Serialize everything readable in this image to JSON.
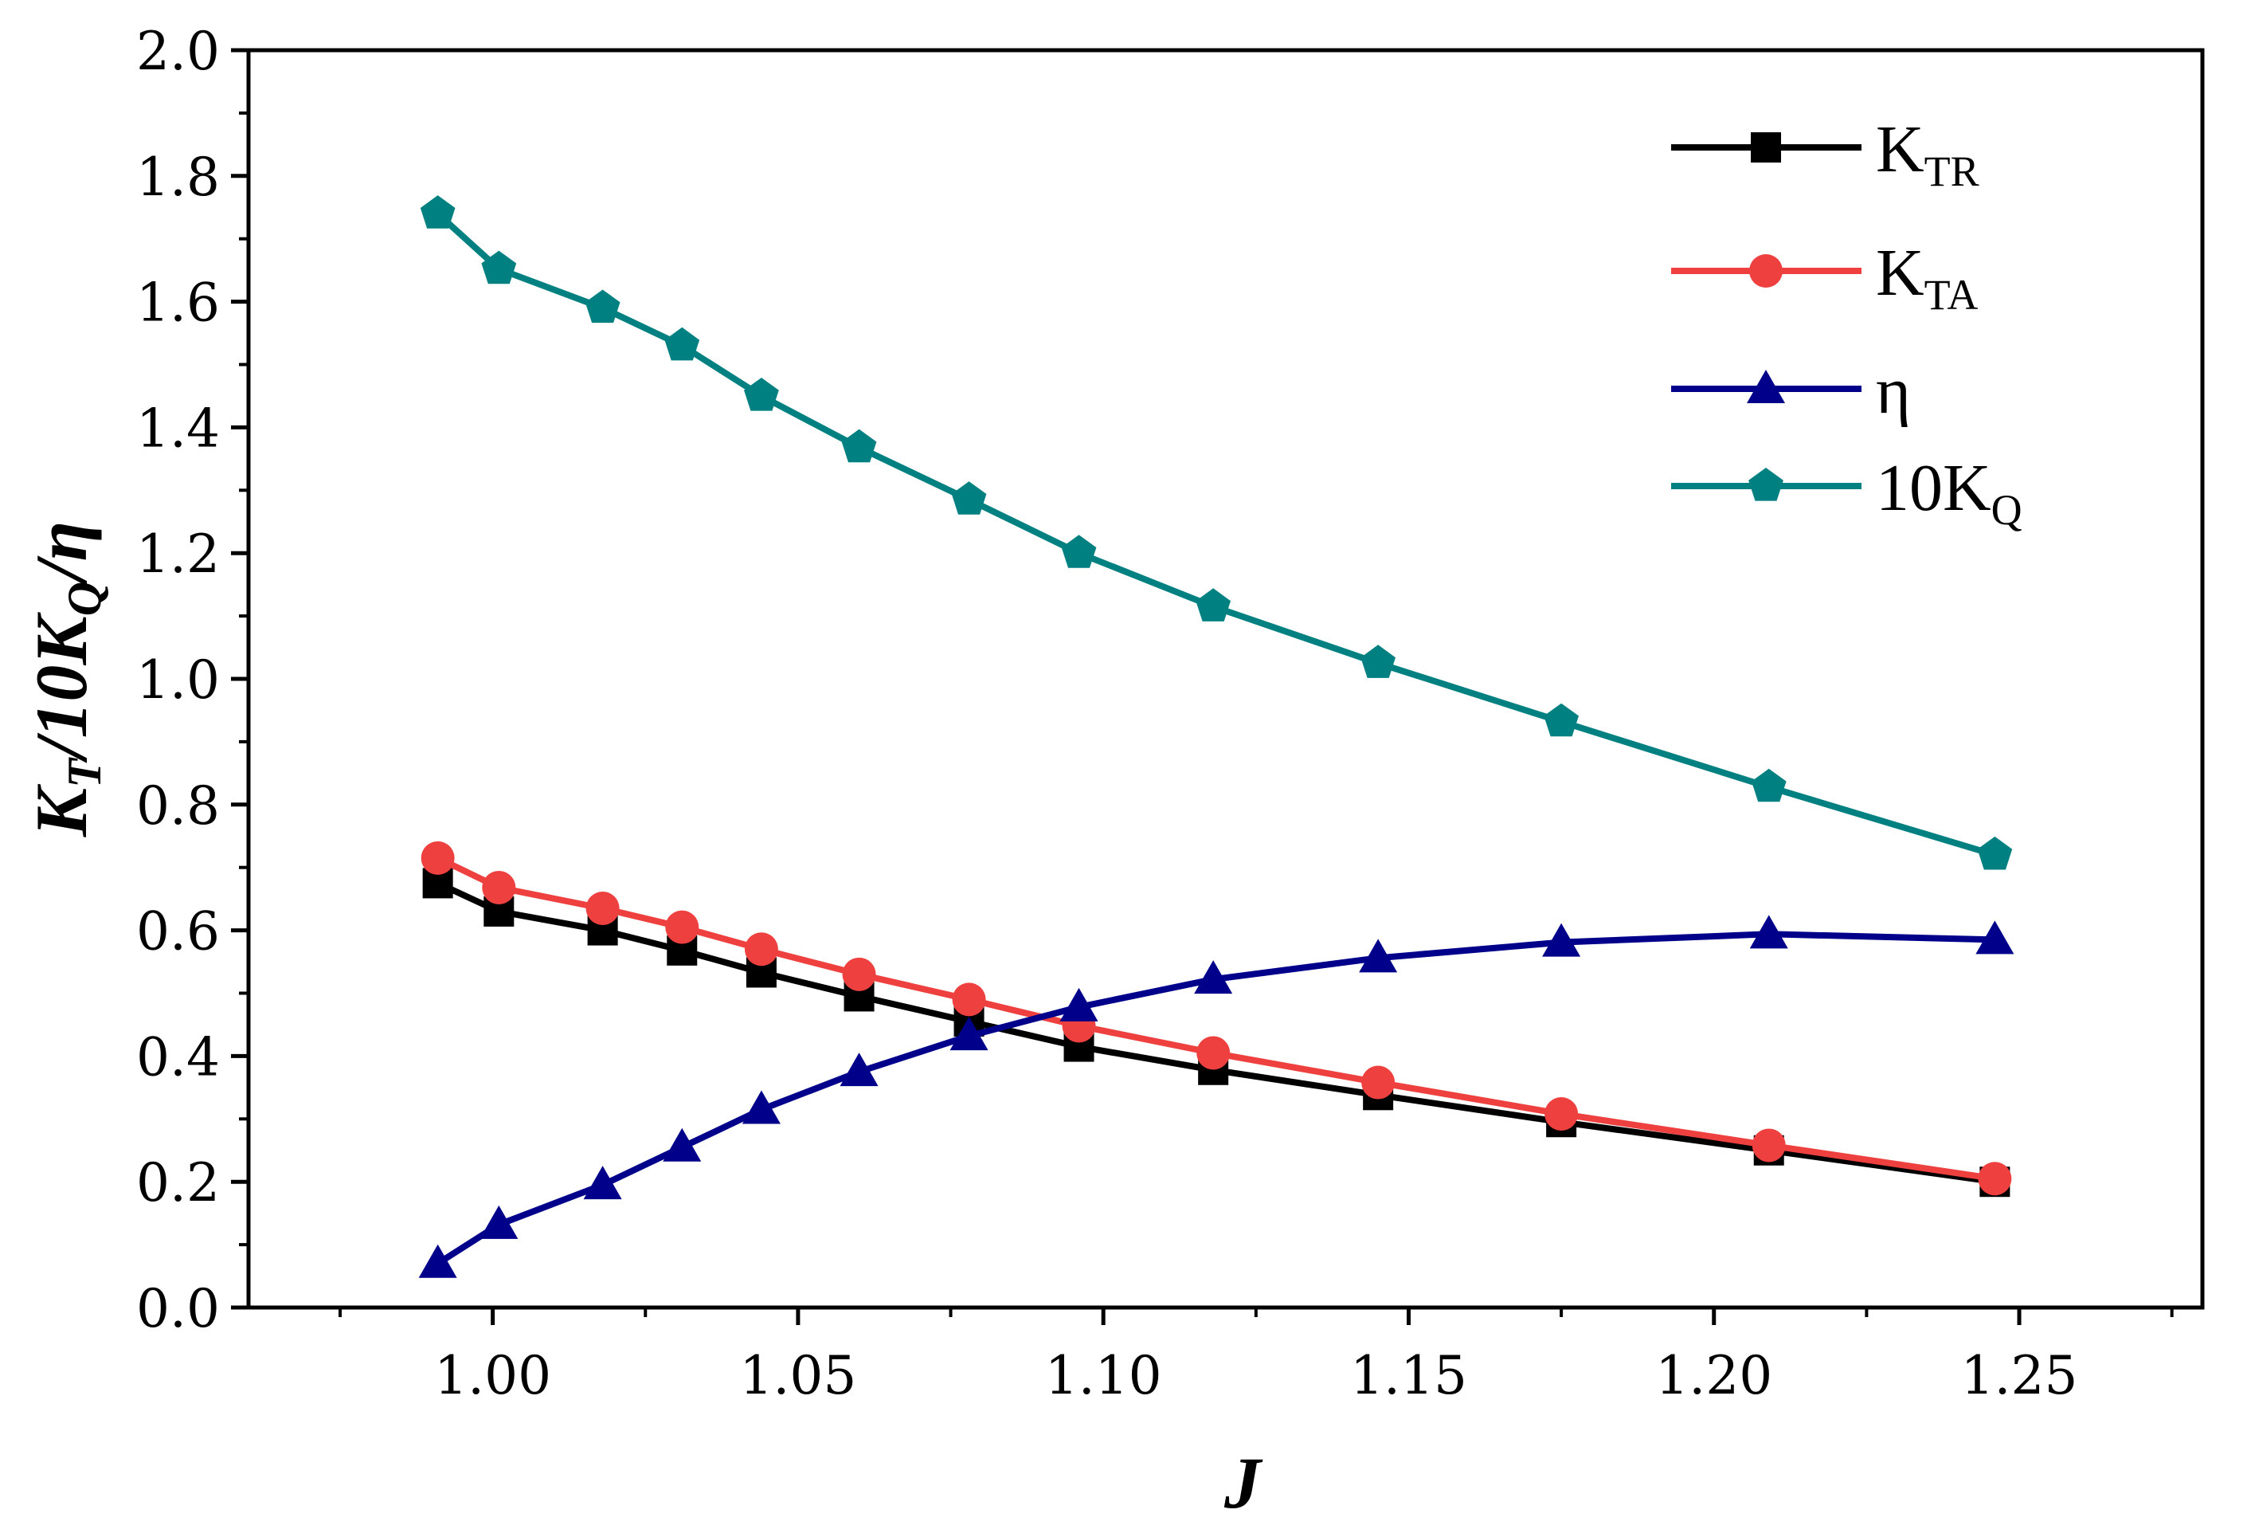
{
  "chart_data": {
    "type": "line",
    "title": "",
    "xlabel": "J",
    "ylabel": {
      "main": "K",
      "sub1": "T",
      "mid": "/10K",
      "sub2": "Q",
      "tail": "/η"
    },
    "xlim": [
      0.96,
      1.28
    ],
    "ylim": [
      0.0,
      2.0
    ],
    "xticks": [
      1.0,
      1.05,
      1.1,
      1.15,
      1.2,
      1.25
    ],
    "xtick_labels": [
      "1.00",
      "1.05",
      "1.10",
      "1.15",
      "1.20",
      "1.25"
    ],
    "yticks": [
      0.0,
      0.2,
      0.4,
      0.6,
      0.8,
      1.0,
      1.2,
      1.4,
      1.6,
      1.8,
      2.0
    ],
    "ytick_labels": [
      "0.0",
      "0.2",
      "0.4",
      "0.6",
      "0.8",
      "1.0",
      "1.2",
      "1.4",
      "1.6",
      "1.8",
      "2.0"
    ],
    "x": [
      0.991,
      1.001,
      1.018,
      1.031,
      1.044,
      1.06,
      1.078,
      1.096,
      1.118,
      1.145,
      1.175,
      1.209,
      1.246
    ],
    "legend_position": "top-right",
    "series": [
      {
        "name": "K",
        "sub": "TR",
        "marker": "square",
        "color": "#000000",
        "values": [
          0.675,
          0.63,
          0.6,
          0.568,
          0.533,
          0.495,
          0.455,
          0.415,
          0.378,
          0.338,
          0.295,
          0.25,
          0.2
        ]
      },
      {
        "name": "K",
        "sub": "TA",
        "marker": "circle",
        "color": "#ef4040",
        "values": [
          0.715,
          0.668,
          0.635,
          0.605,
          0.57,
          0.53,
          0.49,
          0.448,
          0.405,
          0.358,
          0.308,
          0.258,
          0.205
        ]
      },
      {
        "name": "η",
        "sub": "",
        "marker": "triangle",
        "color": "#00008b",
        "values": [
          0.07,
          0.132,
          0.195,
          0.255,
          0.315,
          0.375,
          0.432,
          0.478,
          0.522,
          0.556,
          0.581,
          0.594,
          0.585
        ]
      },
      {
        "name": "10K",
        "sub": "Q",
        "marker": "pentagon",
        "color": "#008080",
        "values": [
          1.74,
          1.652,
          1.59,
          1.53,
          1.45,
          1.368,
          1.285,
          1.2,
          1.115,
          1.025,
          0.932,
          0.828,
          0.72
        ]
      }
    ]
  }
}
